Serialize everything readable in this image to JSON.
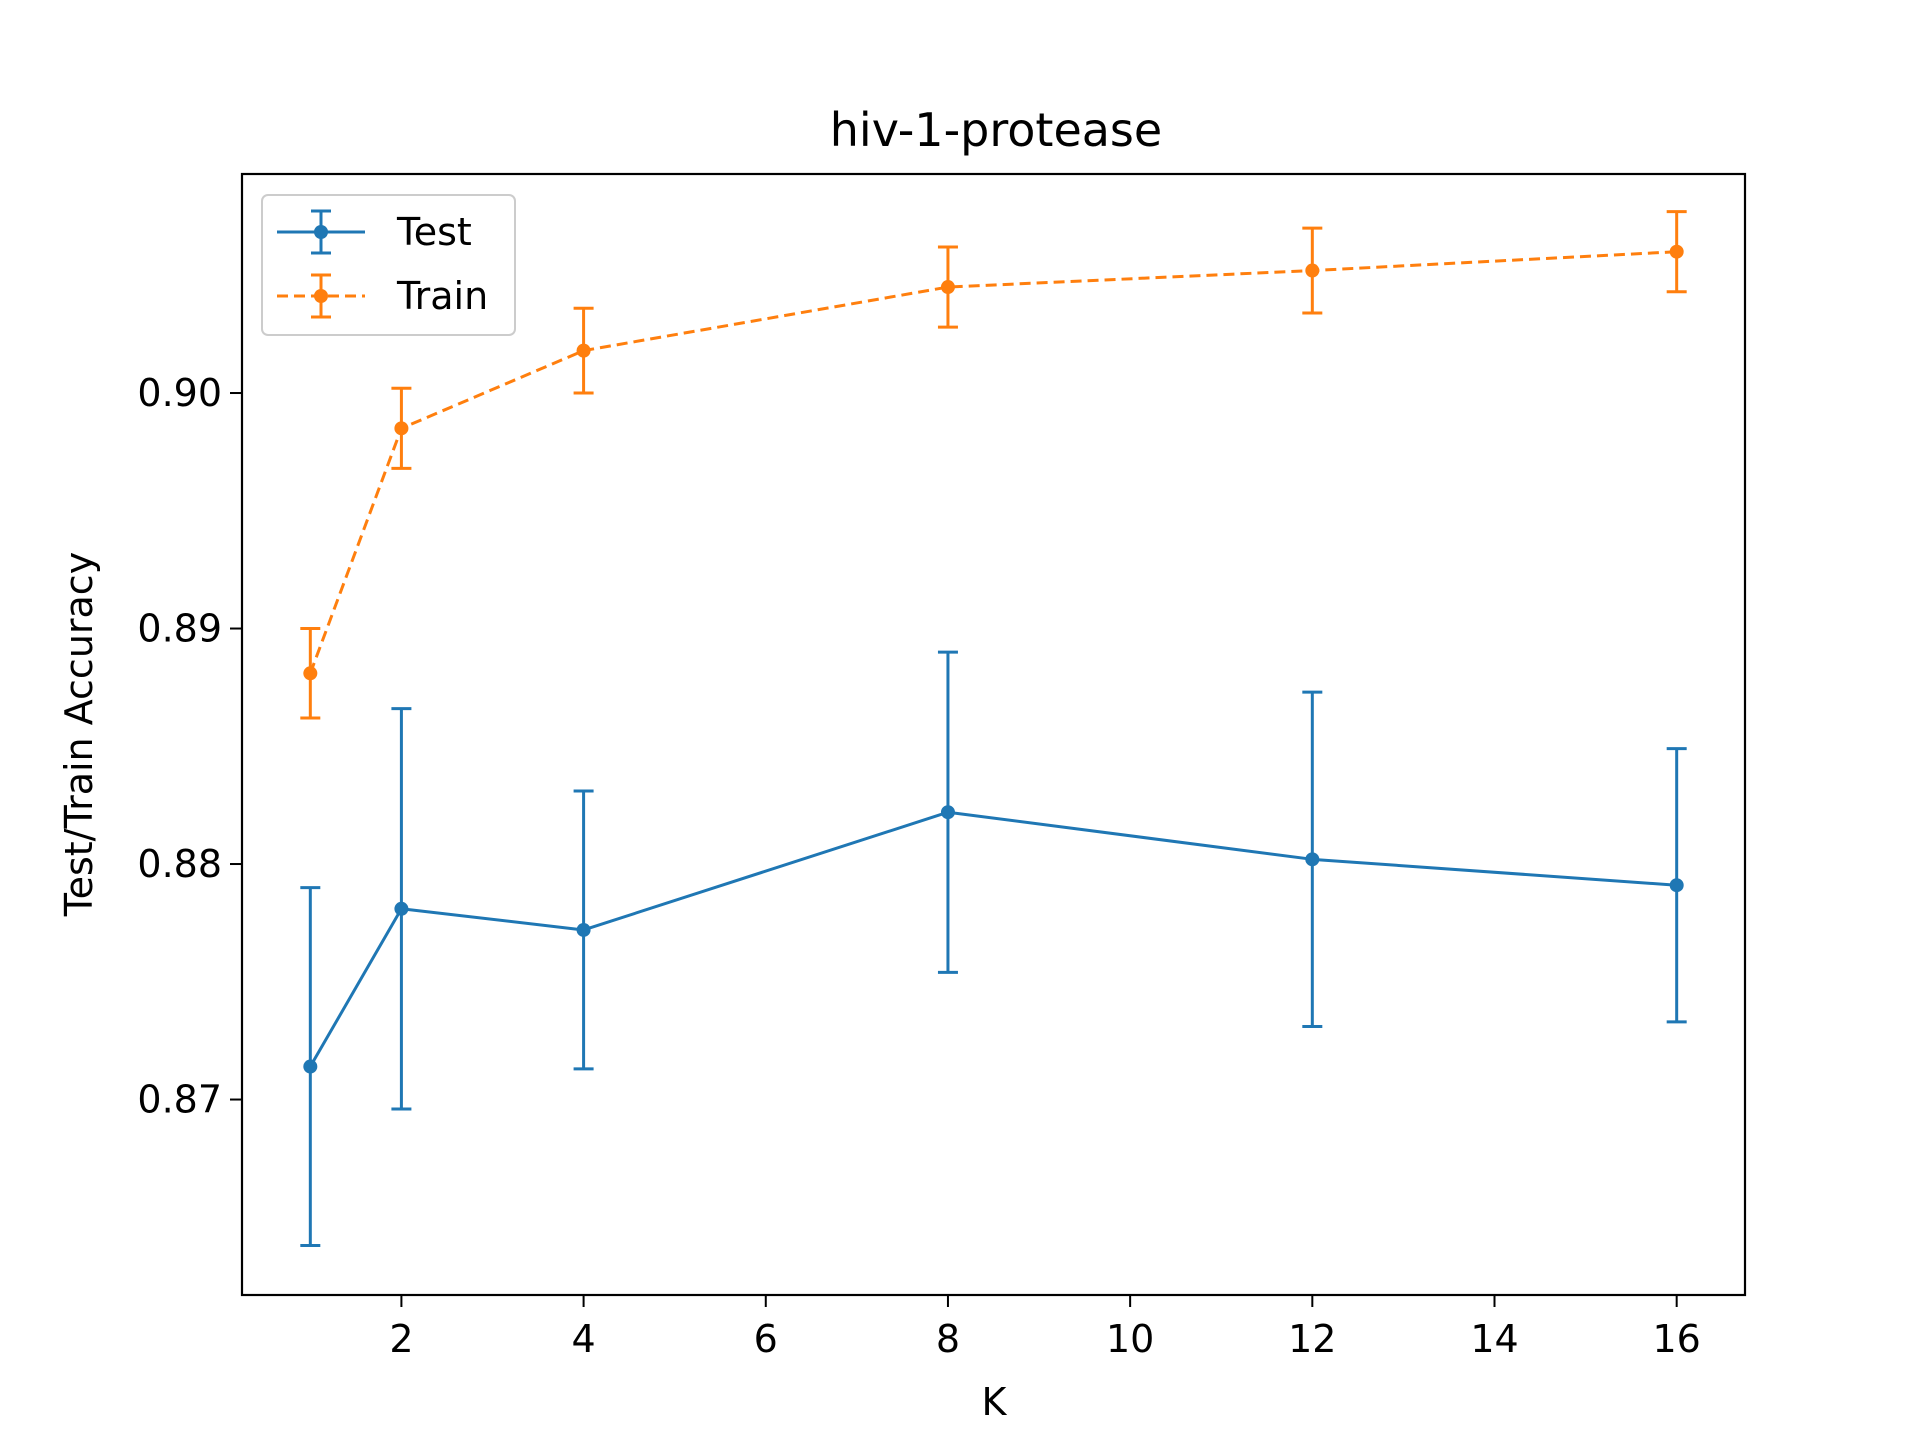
{
  "chart_data": {
    "type": "line",
    "title": "hiv-1-protease",
    "xlabel": "K",
    "ylabel": "Test/Train Accuracy",
    "xlim": [
      0.25,
      16.75
    ],
    "ylim": [
      0.8617,
      0.9093
    ],
    "xticks": [
      2,
      4,
      6,
      8,
      10,
      12,
      14,
      16
    ],
    "xtick_labels": [
      "2",
      "4",
      "6",
      "8",
      "10",
      "12",
      "14",
      "16"
    ],
    "yticks": [
      0.87,
      0.88,
      0.89,
      0.9
    ],
    "ytick_labels": [
      "0.87",
      "0.88",
      "0.89",
      "0.90"
    ],
    "grid": false,
    "legend_position": "top-left",
    "x": [
      1,
      2,
      4,
      8,
      12,
      16
    ],
    "series": [
      {
        "name": "Test",
        "color": "#1f77b4",
        "line_style": "solid",
        "marker": "circle",
        "values": [
          0.8714,
          0.8781,
          0.8772,
          0.8822,
          0.8802,
          0.8791
        ],
        "error": [
          0.0076,
          0.0085,
          0.0059,
          0.0068,
          0.0071,
          0.0058
        ]
      },
      {
        "name": "Train",
        "color": "#ff7f0e",
        "line_style": "dashed",
        "marker": "circle",
        "values": [
          0.8881,
          0.8985,
          0.9018,
          0.9045,
          0.9052,
          0.906
        ],
        "error": [
          0.0019,
          0.0017,
          0.0018,
          0.0017,
          0.0018,
          0.0017
        ]
      }
    ]
  }
}
